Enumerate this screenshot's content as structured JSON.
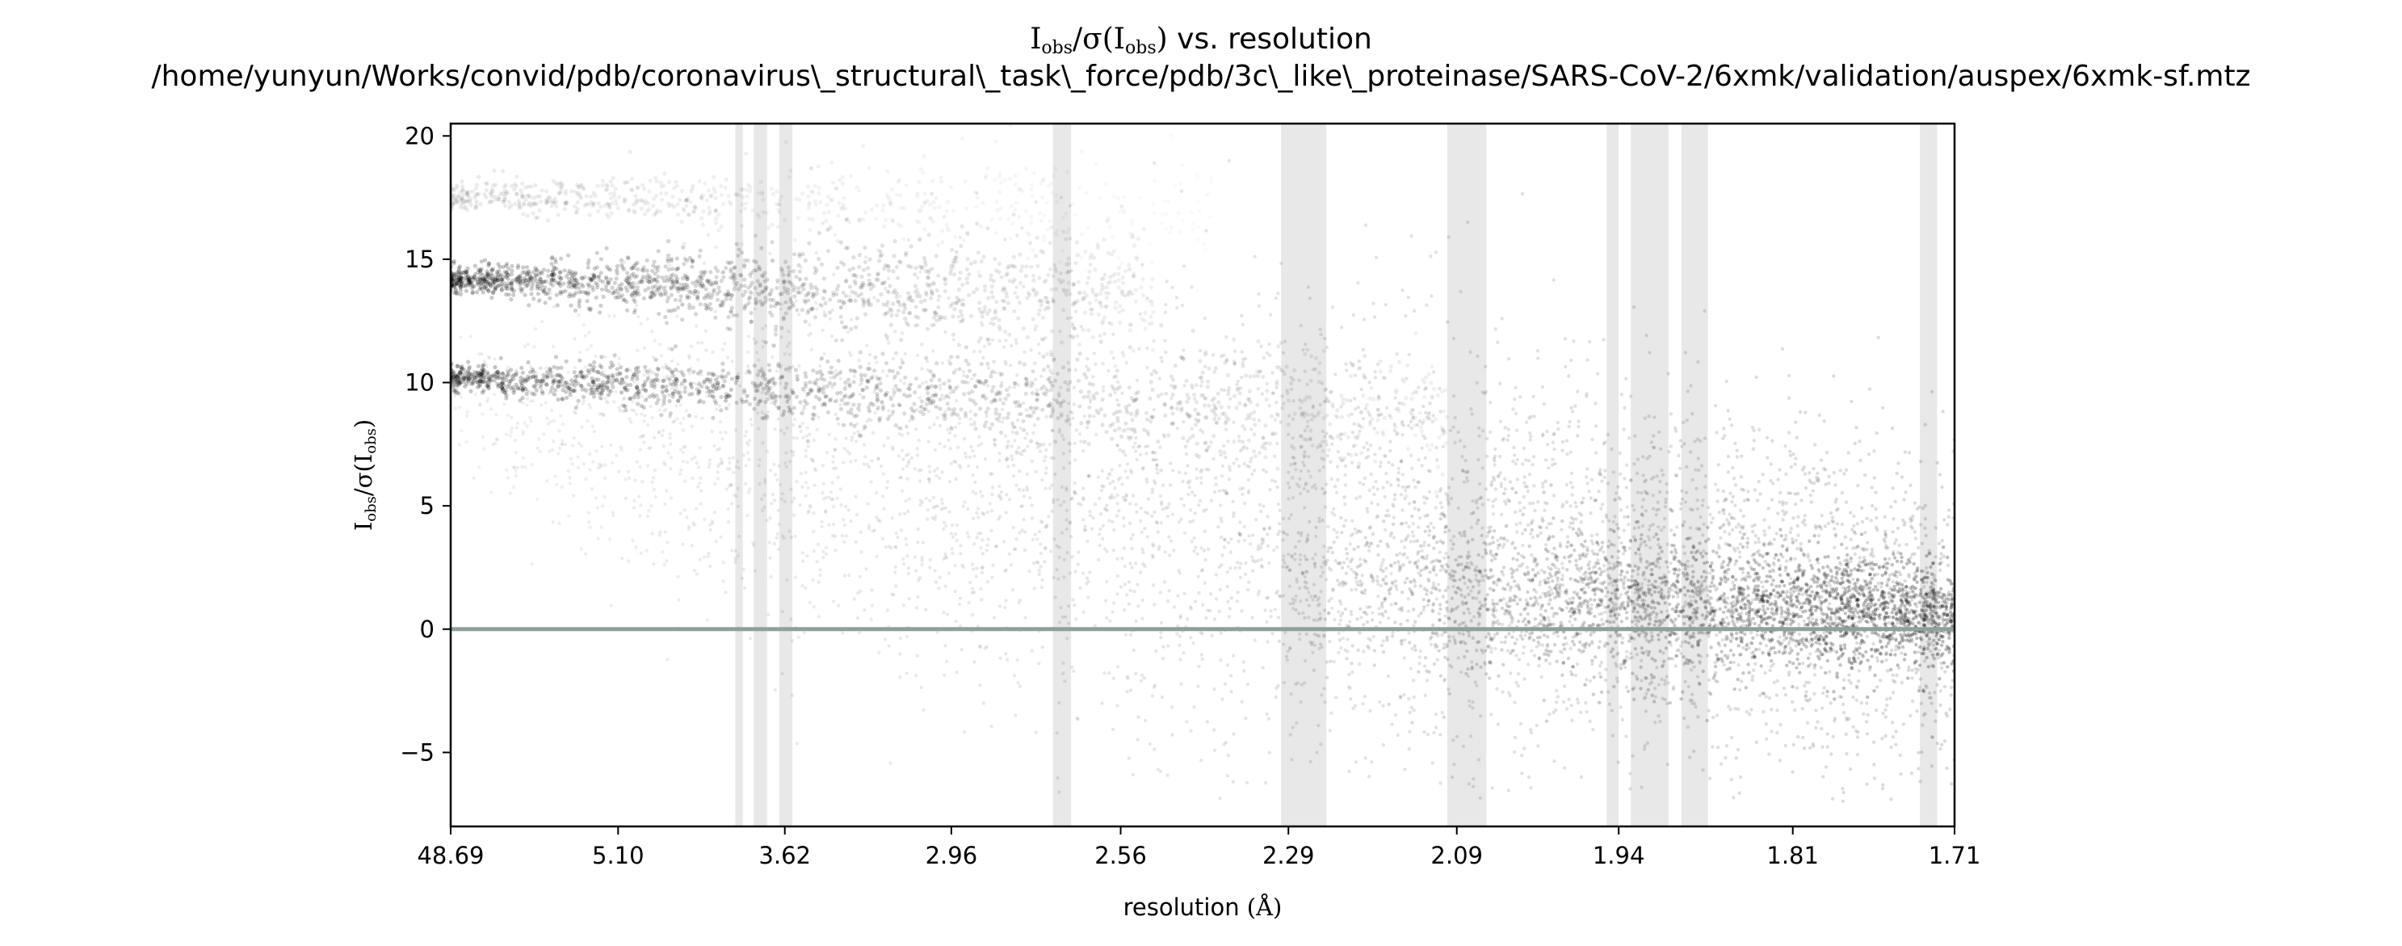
{
  "chart_data": {
    "type": "scatter",
    "title_main": "vs. resolution",
    "title_math": "I",
    "title_obs": "obs",
    "title_sigma": "/σ(I",
    "title_close": ")",
    "title_path": "/home/yunyun/Works/convid/pdb/coronavirus\\_structural\\_task\\_force/pdb/3c\\_like\\_proteinase/SARS-CoV-2/6xmk/validation/auspex/6xmk-sf.mtz",
    "xlabel": "resolution",
    "xlabel_unit": "(Å)",
    "ylabel_math": "I",
    "ylabel_obs": "obs",
    "ylabel_sigma": "/σ(I",
    "ylabel_close": ")",
    "x_axis_scale": "1/d^2",
    "x_ticks": [
      "48.69",
      "5.10",
      "3.62",
      "2.96",
      "2.56",
      "2.29",
      "2.09",
      "1.94",
      "1.81",
      "1.71"
    ],
    "x_tick_values": [
      48.69,
      5.1,
      3.62,
      2.96,
      2.56,
      2.29,
      2.09,
      1.94,
      1.81,
      1.71
    ],
    "ylim": [
      -8,
      20.5
    ],
    "y_ticks": [
      "−5",
      "0",
      "5",
      "10",
      "15",
      "20"
    ],
    "y_tick_values": [
      -5,
      0,
      5,
      10,
      15,
      20
    ],
    "zero_line": 0,
    "ice_ring_bands_angstrom": [
      [
        3.92,
        3.87
      ],
      [
        3.8,
        3.72
      ],
      [
        3.65,
        3.58
      ],
      [
        2.7,
        2.66
      ],
      [
        2.3,
        2.24
      ],
      [
        2.1,
        2.06
      ],
      [
        1.95,
        1.94
      ],
      [
        1.93,
        1.9
      ],
      [
        1.89,
        1.87
      ],
      [
        1.73,
        1.72
      ]
    ],
    "bands": [
      {
        "name": "",
        "y": 17.6,
        "from": 48.69,
        "to": 2.4
      },
      {
        "name": "",
        "y": 14.2,
        "from": 48.69,
        "to": 2.5
      },
      {
        "name": "",
        "y": 10.2,
        "from": 48.69,
        "to": 2.1
      }
    ],
    "point_color": "#000000",
    "ring_color": "#e8e8e8",
    "zero_line_color": "#8fa09a",
    "grid": false,
    "legend": "none"
  }
}
